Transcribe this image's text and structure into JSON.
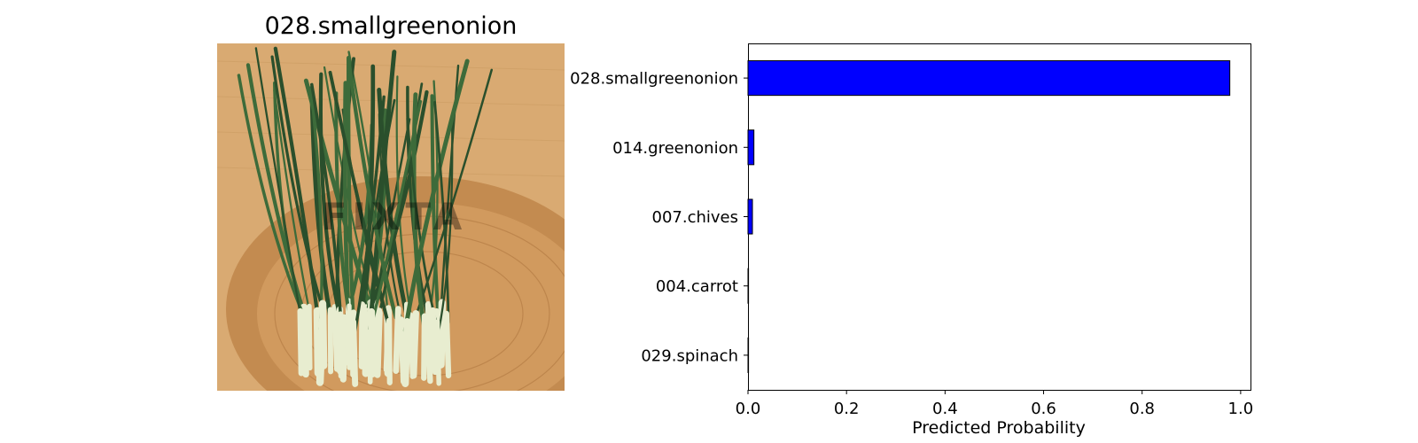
{
  "image_panel": {
    "title": "028.smallgreenonion",
    "watermark": "FIXTA",
    "colors": {
      "mat": "#d9aa72",
      "basket": "#c38b50",
      "leaf": "#3d6b3a",
      "leaf_dark": "#2a4f2c",
      "stalk": "#e8edd0"
    }
  },
  "chart_data": {
    "type": "bar",
    "orientation": "horizontal",
    "categories": [
      "028.smallgreenonion",
      "014.greenonion",
      "007.chives",
      "004.carrot",
      "029.spinach"
    ],
    "values": [
      0.978,
      0.012,
      0.009,
      0.0005,
      0.0003
    ],
    "xlabel": "Predicted Probability",
    "ylabel": "",
    "xlim": [
      0,
      1.02
    ],
    "xticks": [
      "0.0",
      "0.2",
      "0.4",
      "0.6",
      "0.8",
      "1.0"
    ],
    "xtick_values": [
      0,
      0.2,
      0.4,
      0.6,
      0.8,
      1.0
    ],
    "grid": false,
    "bar_color": "#0000ff",
    "edge_color": "#000000"
  }
}
